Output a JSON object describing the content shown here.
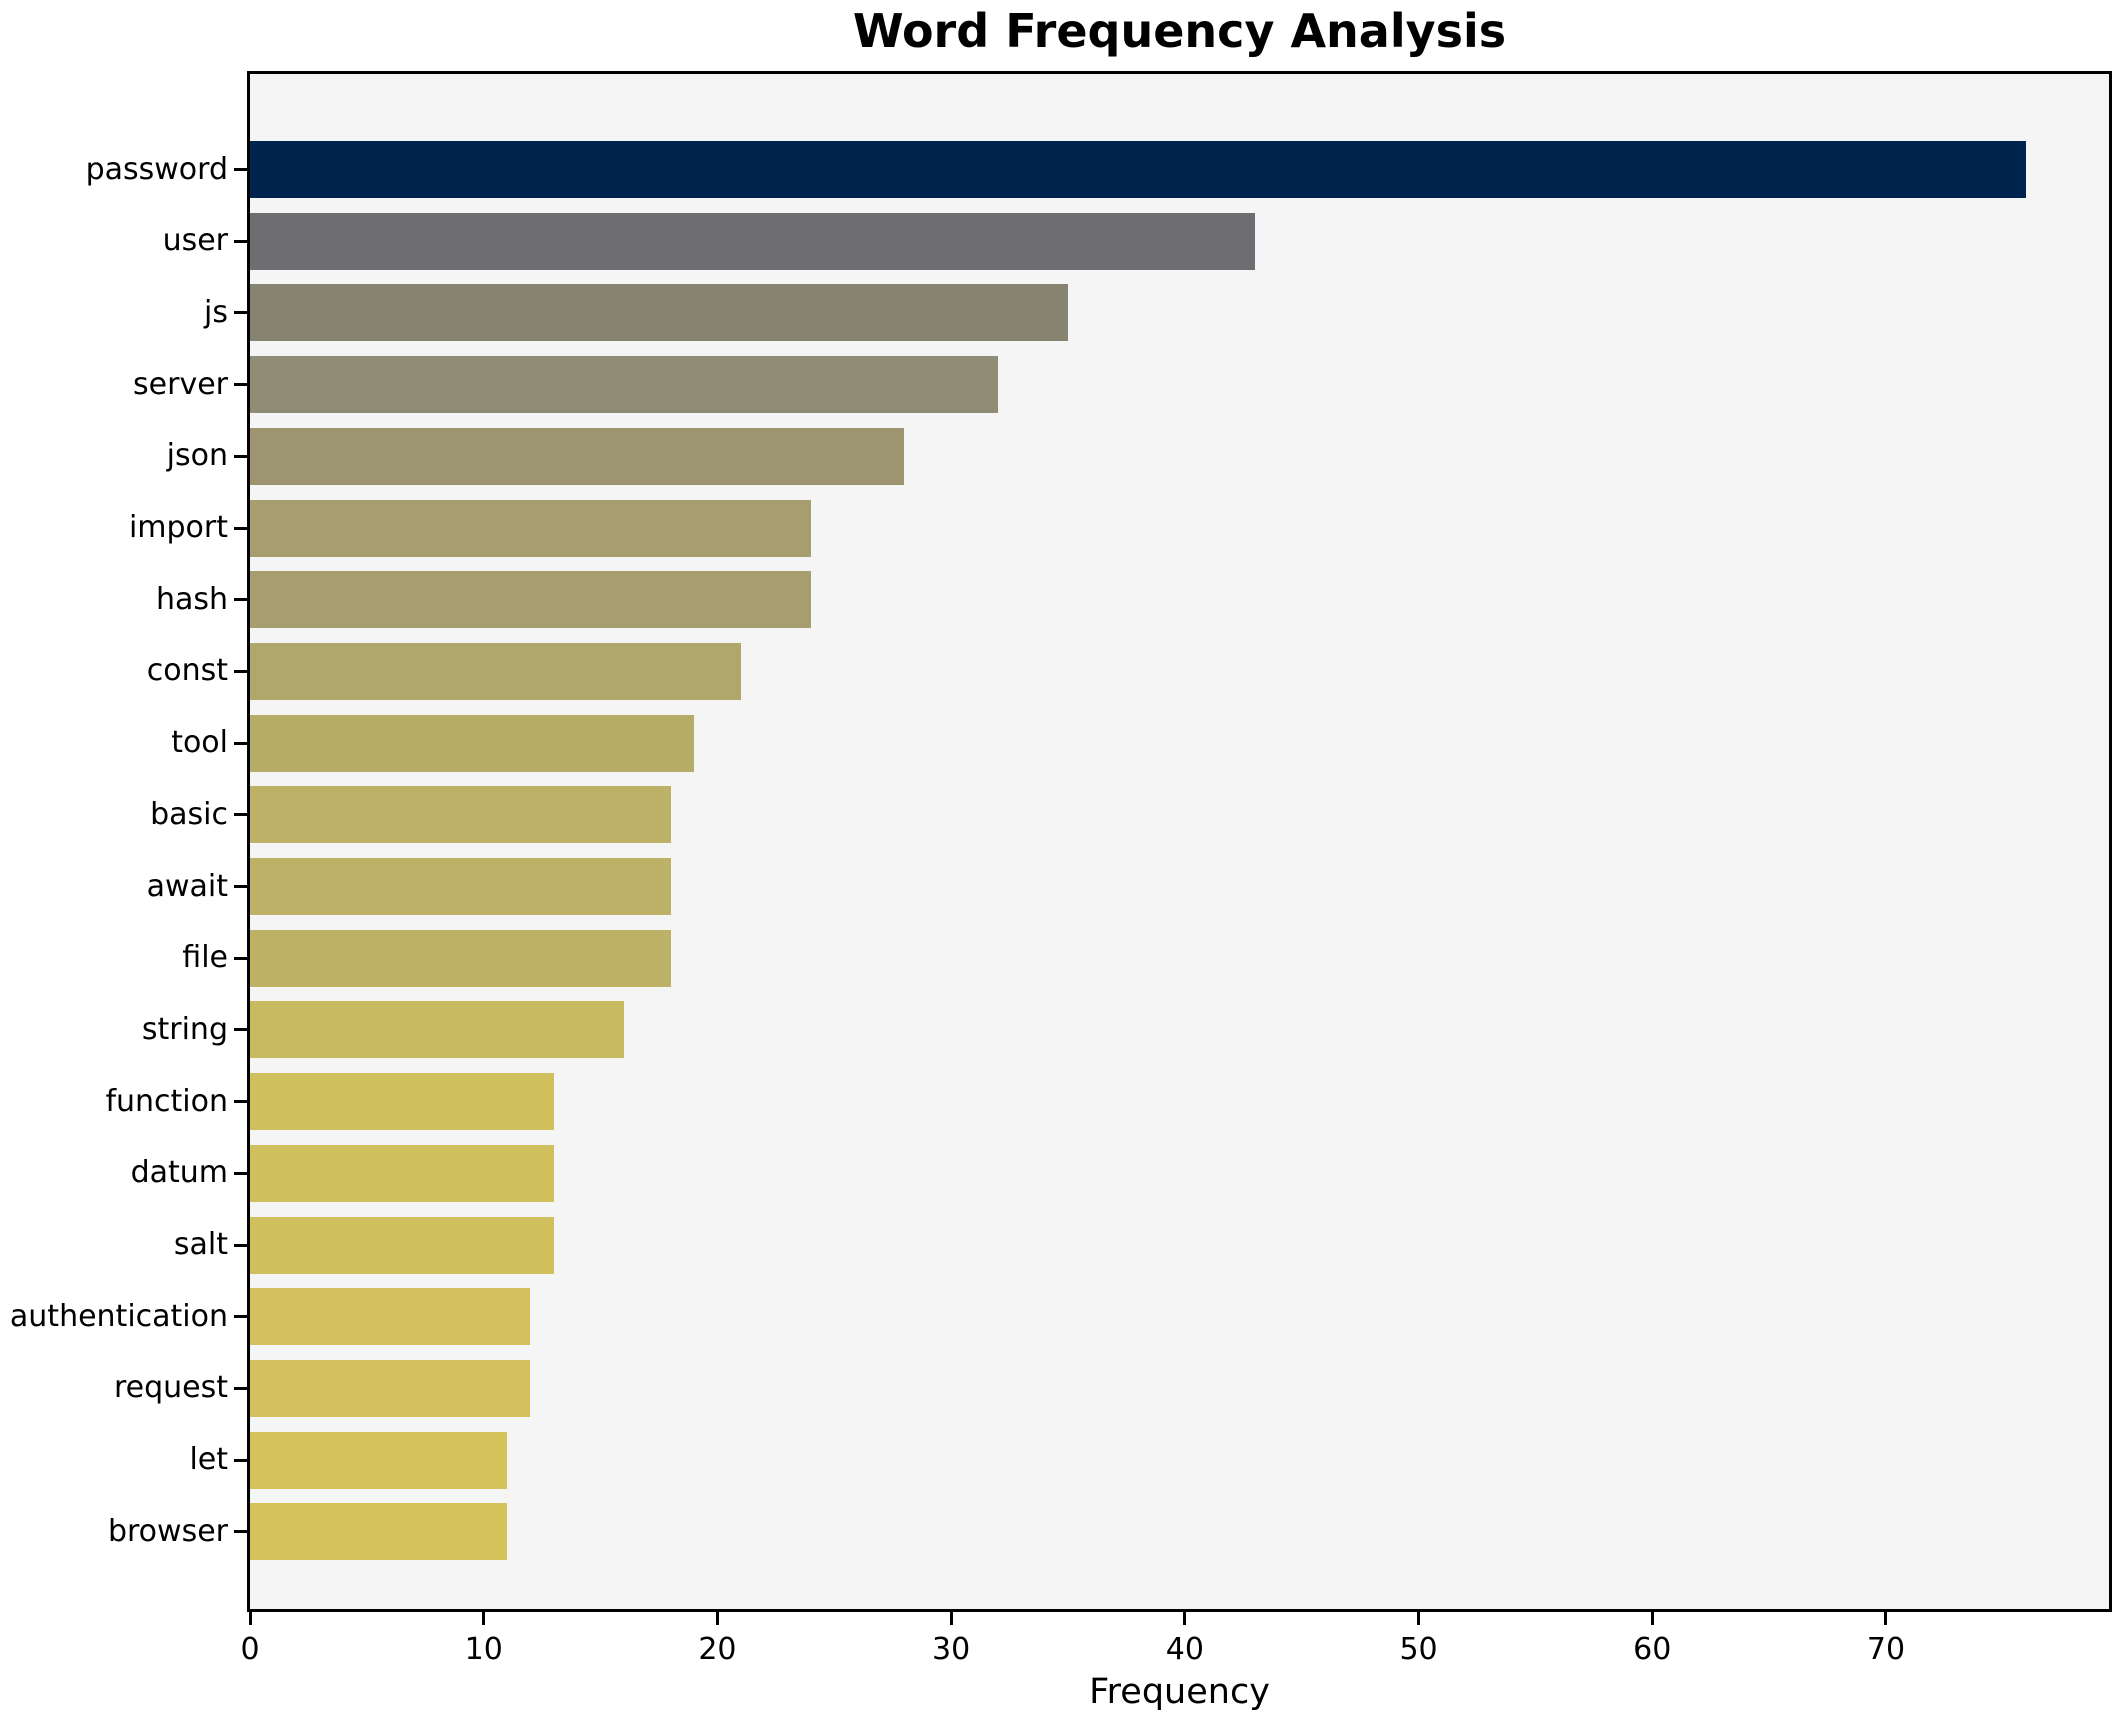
{
  "chart_data": {
    "type": "bar",
    "orientation": "horizontal",
    "title": "Word Frequency Analysis",
    "xlabel": "Frequency",
    "ylabel": "",
    "categories": [
      "password",
      "user",
      "js",
      "server",
      "json",
      "import",
      "hash",
      "const",
      "tool",
      "basic",
      "await",
      "file",
      "string",
      "function",
      "datum",
      "salt",
      "authentication",
      "request",
      "let",
      "browser"
    ],
    "values": [
      76,
      43,
      35,
      32,
      28,
      24,
      24,
      21,
      19,
      18,
      18,
      18,
      16,
      13,
      13,
      13,
      12,
      12,
      11,
      11
    ],
    "bar_colors": [
      "#00234e",
      "#6e6e72",
      "#868371",
      "#918c75",
      "#9c956f",
      "#a69e6e",
      "#a69e6e",
      "#b0a76a",
      "#b7ac67",
      "#bcb166",
      "#bcb166",
      "#bdb166",
      "#c8ba5f",
      "#d0bf5d",
      "#d0bf5d",
      "#d0bf5d",
      "#d2c15c",
      "#d2c15c",
      "#d4c35b",
      "#d4c35b"
    ],
    "xticks": [
      0,
      10,
      20,
      30,
      40,
      50,
      60,
      70
    ],
    "xlim": [
      0,
      79.8
    ],
    "grid": false,
    "legend": false,
    "plot_background": "#f5f5f6",
    "figure_background": "#ffffff",
    "spine_color": "#000000",
    "text_color": "#000000"
  }
}
